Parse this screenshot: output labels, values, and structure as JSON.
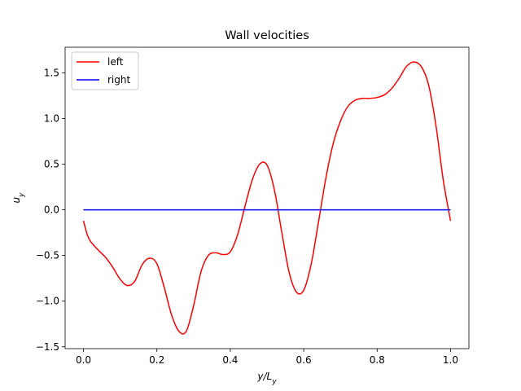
{
  "chart_data": {
    "type": "line",
    "title": "Wall velocities",
    "xlabel": "y/L_y",
    "ylabel": "u_y",
    "xlim": [
      -0.05,
      1.05
    ],
    "ylim": [
      -1.52,
      1.78
    ],
    "xticks": [
      0.0,
      0.2,
      0.4,
      0.6,
      0.8,
      1.0
    ],
    "xtick_labels": [
      "0.0",
      "0.2",
      "0.4",
      "0.6",
      "0.8",
      "1.0"
    ],
    "yticks": [
      -1.5,
      -1.0,
      -0.5,
      0.0,
      0.5,
      1.0,
      1.5
    ],
    "ytick_labels": [
      "−1.5",
      "−1.0",
      "−0.5",
      "0.0",
      "0.5",
      "1.0",
      "1.5"
    ],
    "grid": false,
    "legend_position": "top-left",
    "series": [
      {
        "name": "left",
        "color": "#ff0000",
        "x": [
          0.0,
          0.01,
          0.02,
          0.04,
          0.06,
          0.08,
          0.1,
          0.12,
          0.14,
          0.16,
          0.18,
          0.2,
          0.22,
          0.24,
          0.26,
          0.28,
          0.3,
          0.32,
          0.34,
          0.36,
          0.38,
          0.4,
          0.42,
          0.44,
          0.46,
          0.48,
          0.5,
          0.52,
          0.54,
          0.56,
          0.58,
          0.6,
          0.62,
          0.64,
          0.66,
          0.68,
          0.7,
          0.72,
          0.74,
          0.76,
          0.78,
          0.8,
          0.82,
          0.84,
          0.86,
          0.88,
          0.9,
          0.92,
          0.94,
          0.96,
          0.98,
          1.0
        ],
        "y": [
          -0.12,
          -0.27,
          -0.35,
          -0.44,
          -0.52,
          -0.63,
          -0.76,
          -0.83,
          -0.78,
          -0.6,
          -0.53,
          -0.59,
          -0.85,
          -1.15,
          -1.33,
          -1.33,
          -1.05,
          -0.68,
          -0.5,
          -0.47,
          -0.49,
          -0.46,
          -0.27,
          0.04,
          0.33,
          0.5,
          0.49,
          0.22,
          -0.24,
          -0.68,
          -0.9,
          -0.88,
          -0.6,
          -0.14,
          0.34,
          0.72,
          0.97,
          1.13,
          1.2,
          1.22,
          1.22,
          1.23,
          1.26,
          1.33,
          1.44,
          1.57,
          1.62,
          1.57,
          1.37,
          0.93,
          0.33,
          -0.12
        ]
      },
      {
        "name": "right",
        "color": "#0000ff",
        "x": [
          0.0,
          1.0
        ],
        "y": [
          0.0,
          0.0
        ]
      }
    ]
  }
}
